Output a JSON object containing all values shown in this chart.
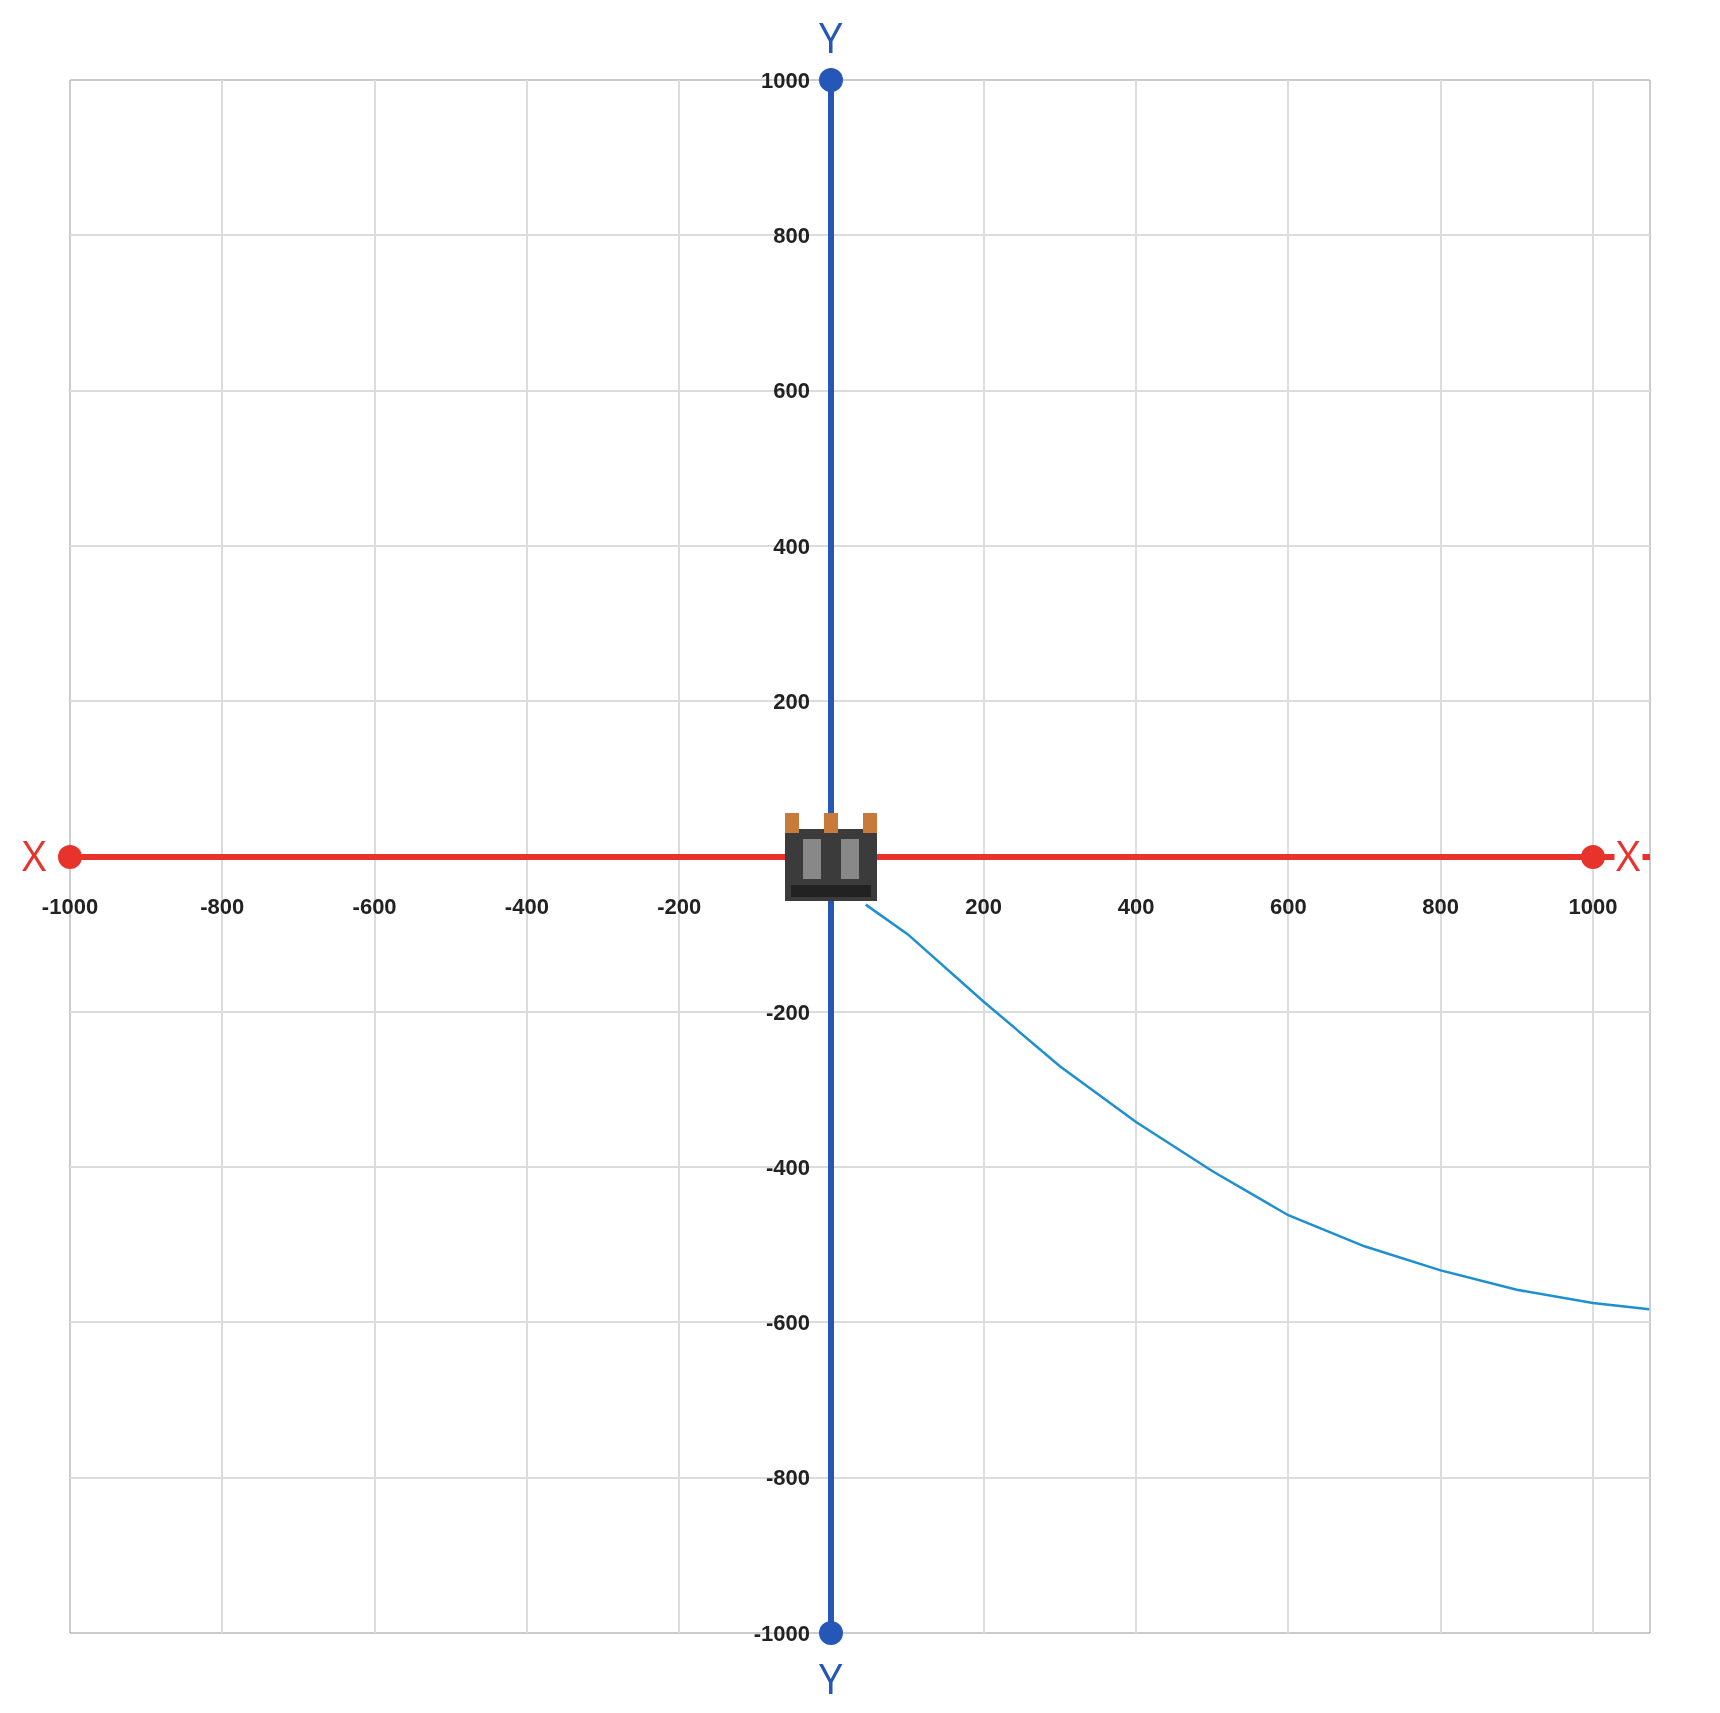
{
  "chart_data": {
    "type": "line",
    "x": [
      45,
      100,
      200,
      300,
      400,
      500,
      600,
      700,
      800,
      900,
      1000,
      1074
    ],
    "series": [
      {
        "color": "#1e8fd0",
        "values": [
          -62,
          -100,
          -187,
          -270,
          -342,
          -405,
          -462,
          -502,
          -533,
          -558,
          -575,
          -583
        ]
      }
    ],
    "xlim": [
      -1000,
      1075
    ],
    "ylim": [
      -1000,
      1000
    ],
    "xticks": [
      -1000,
      -800,
      -600,
      -400,
      -200,
      200,
      400,
      600,
      800,
      1000
    ],
    "yticks": [
      -1000,
      -800,
      -600,
      -400,
      -200,
      200,
      400,
      600,
      800,
      1000
    ],
    "grid": true,
    "xlabel": "X",
    "ylabel": "Y"
  }
}
